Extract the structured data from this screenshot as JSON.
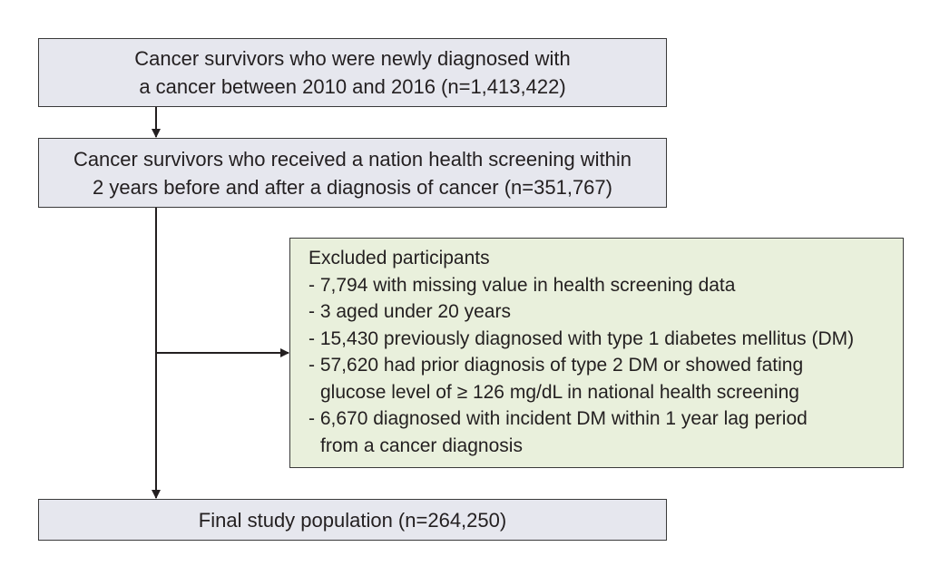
{
  "flowchart": {
    "step1": {
      "lines": [
        "Cancer survivors who were newly diagnosed with",
        "a cancer between 2010 and 2016 (n=1,413,422)"
      ],
      "fill": "#e6e7ee"
    },
    "step2": {
      "lines": [
        "Cancer survivors who received a nation health screening within",
        "2 years before and after a diagnosis of cancer (n=351,767)"
      ],
      "fill": "#e6e7ee"
    },
    "exclusions": {
      "title": "Excluded participants",
      "items": [
        "- 7,794 with missing value in health screening data",
        "- 3 aged under 20 years",
        "- 15,430 previously diagnosed with type 1 diabetes mellitus (DM)",
        "- 57,620 had prior diagnosis of type 2 DM or showed fating",
        "glucose level of ≥ 126 mg/dL in national health screening",
        "- 6,670 diagnosed with incident DM within 1 year lag period",
        "from a cancer diagnosis"
      ],
      "fill": "#e9f0dc"
    },
    "final": {
      "label": "Final study population (n=264,250)",
      "fill": "#e6e7ee"
    }
  }
}
